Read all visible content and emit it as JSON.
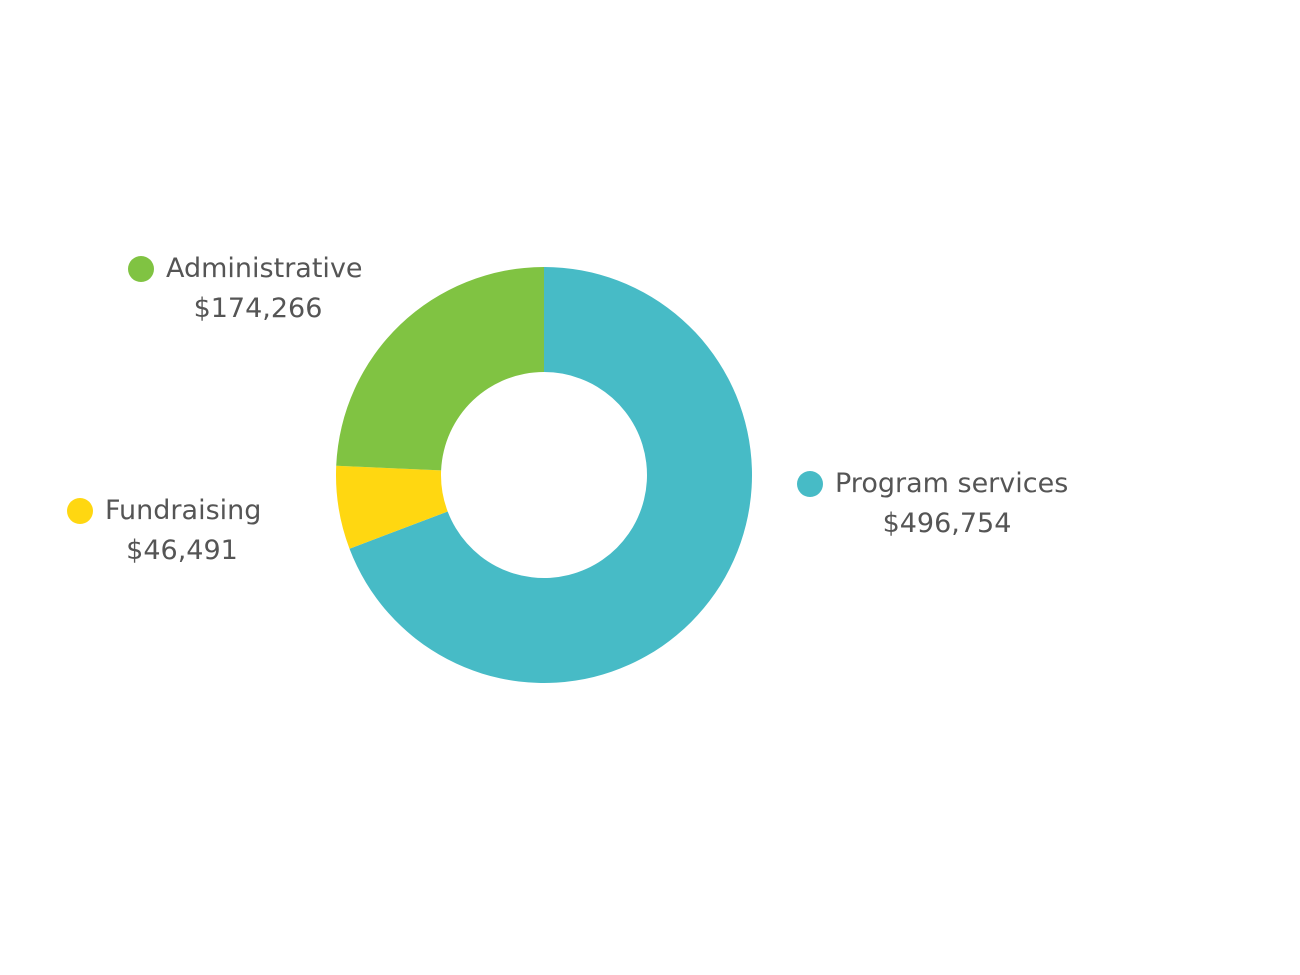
{
  "chart_data": {
    "type": "pie",
    "donut": true,
    "start_angle_deg": 0,
    "direction": "clockwise-from-top",
    "slices": [
      {
        "key": "prog",
        "label": "Program services",
        "value": 496754,
        "value_label": "$496,754",
        "color": "#47BBC6"
      },
      {
        "key": "fund",
        "label": "Fundraising",
        "value": 46491,
        "value_label": "$46,491",
        "color": "#FFD711"
      },
      {
        "key": "admin",
        "label": "Administrative",
        "value": 174266,
        "value_label": "$174,266",
        "color": "#80C342"
      }
    ]
  }
}
